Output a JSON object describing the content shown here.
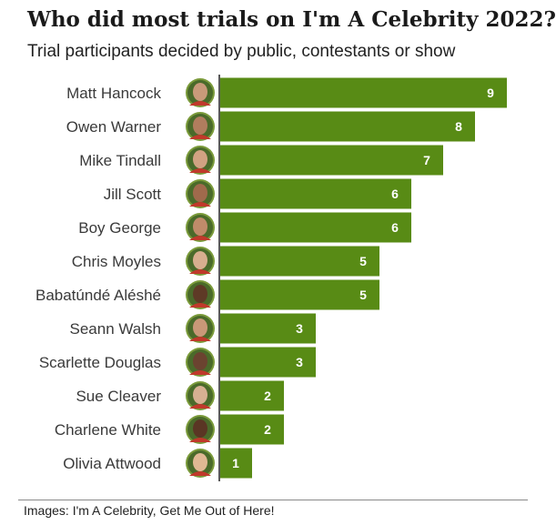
{
  "chart_data": {
    "type": "bar",
    "orientation": "horizontal",
    "title": "Who did most trials on I'm A Celebrity 2022?",
    "subtitle": "Trial participants decided by public, contestants or show",
    "categories": [
      "Matt Hancock",
      "Owen Warner",
      "Mike Tindall",
      "Jill Scott",
      "Boy George",
      "Chris Moyles",
      "Babatúndé Aléshé",
      "Seann Walsh",
      "Scarlette Douglas",
      "Sue Cleaver",
      "Charlene White",
      "Olivia Attwood"
    ],
    "values": [
      9,
      8,
      7,
      6,
      6,
      5,
      5,
      3,
      3,
      2,
      2,
      1
    ],
    "xlim": [
      0,
      9
    ],
    "grid": false,
    "legend": "none",
    "data_labels": true,
    "bar_color": "#588b15",
    "avatar_icon": "contestant-portrait"
  },
  "footer": {
    "source": "Images: I'm A Celebrity, Get Me Out of Here!"
  }
}
